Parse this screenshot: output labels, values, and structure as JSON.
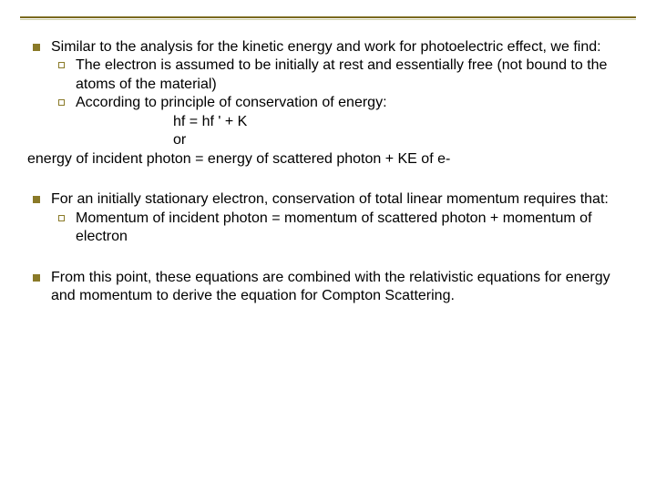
{
  "colors": {
    "bullet": "#8a7a28",
    "text": "#000000",
    "background": "#ffffff",
    "rule": "#7a6a1f"
  },
  "typography": {
    "font_family": "Arial",
    "body_fontsize_pt": 12,
    "line_height": 1.28
  },
  "blocks": [
    {
      "lead": "Similar to the analysis for the kinetic energy and work for photoelectric effect, we find:",
      "subs": [
        "The electron is assumed to be initially at rest and essentially free (not bound to the atoms of the material)",
        "According to principle of conservation of energy:"
      ],
      "eq_lines": [
        "hf = hf ' + K",
        "or"
      ],
      "flush_line": "energy of incident photon = energy of scattered photon + KE of e-"
    },
    {
      "lead": "For an initially stationary electron, conservation of total linear momentum requires that:",
      "subs": [
        "Momentum of incident photon = momentum of scattered photon + momentum of electron"
      ]
    },
    {
      "lead": "From this point, these equations are combined with the relativistic equations for energy and momentum to derive the equation for Compton Scattering."
    }
  ]
}
